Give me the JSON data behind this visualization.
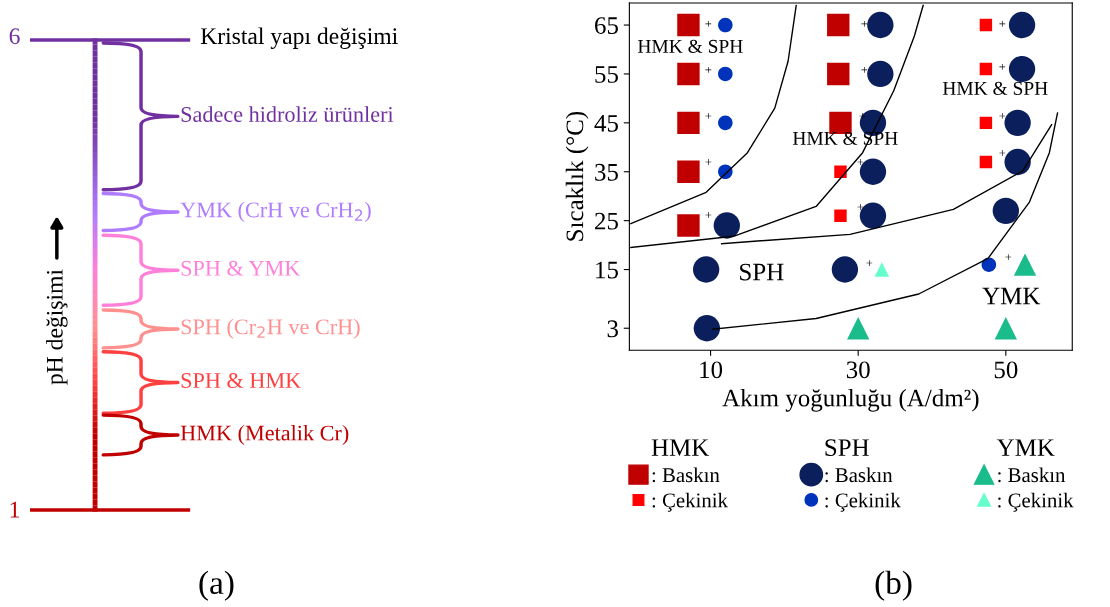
{
  "chart_data": [
    {
      "type": "other",
      "title": "(a)",
      "ylabel": "pH değişimi",
      "categories": [
        "Sadece hidroliz ürünleri",
        "YMK (CrH ve CrH$_{2}$)",
        "SPH & YMK",
        "SPH (Cr$_{2}$H ve CrH)",
        "SPH & HMK",
        "HMK (Metalik Cr)"
      ],
      "colors": [
        "#7030a0",
        "#b07cff",
        "#ff80d8",
        "#ff9090",
        "#ff4040",
        "#c00000"
      ],
      "annotations": [
        "6",
        "1",
        "Kristal yapı değişimi"
      ]
    },
    {
      "type": "scatter",
      "title": "(b)",
      "xlabel": "Akım yoğunluğu (A/dm²)",
      "ylabel": "Sıcaklık (°C)",
      "xlim": [
        -1,
        59
      ],
      "xticks": [
        10,
        30,
        50
      ],
      "ylim": [
        -1.5,
        69.5
      ],
      "yticks": [
        3,
        15,
        25,
        35,
        45,
        55,
        65
      ],
      "grid": false,
      "legend": "bottom",
      "series": [
        {
          "name": ": Baskın",
          "color": "#c00000",
          "marker": "square",
          "x": [
            7,
            7,
            7,
            7,
            7,
            27.3,
            27.3,
            27.6
          ],
          "values": [
            65,
            55,
            45,
            35,
            24,
            65,
            55,
            45
          ]
        },
        {
          "name": ": Çekinik",
          "color": "#ff0000",
          "marker": "square",
          "x": [
            27.6,
            27.6,
            47.3,
            47.3,
            47.3,
            47.3
          ],
          "values": [
            35,
            26,
            65,
            56,
            45,
            37
          ]
        },
        {
          "name": ": Baskın",
          "color": "#0a1f5c",
          "marker": "circle",
          "x": [
            12.2,
            33,
            33,
            32,
            32,
            32,
            52.2,
            52.2,
            51.6,
            51.6,
            50,
            9.4,
            9.5,
            28.2
          ],
          "values": [
            24,
            65,
            55,
            45,
            35,
            26,
            65,
            56,
            45,
            37,
            27,
            15,
            3,
            15
          ]
        },
        {
          "name": ": Çekinik",
          "color": "#0033bb",
          "marker": "circle",
          "x": [
            12,
            12,
            12,
            12,
            47.7
          ],
          "values": [
            65,
            55,
            45,
            35,
            16
          ]
        },
        {
          "name": ": Baskın",
          "color": "#1abc8c",
          "marker": "triangle",
          "x": [
            30,
            50,
            52.6
          ],
          "values": [
            3,
            3,
            16
          ]
        },
        {
          "name": ": Çekinik",
          "color": "#66ffcc",
          "marker": "triangle",
          "x": [
            33.2
          ],
          "values": [
            15
          ]
        },
        {
          "type": "line",
          "color": "#000000",
          "x": [
            -0.8,
            9.4,
            15,
            18.7,
            20.5,
            21.6
          ],
          "values": [
            24.4,
            30.8,
            38.9,
            48,
            57.6,
            69
          ]
        },
        {
          "type": "line",
          "color": "#000000",
          "x": [
            -0.8,
            13.1,
            24.3,
            30.6,
            34.8,
            37.6,
            38.8
          ],
          "values": [
            19.5,
            21.8,
            27.9,
            38.9,
            51.5,
            62.7,
            69
          ]
        },
        {
          "type": "line",
          "color": "#000000",
          "x": [
            11.5,
            28.9,
            42.9,
            52.3,
            56.2
          ],
          "values": [
            20.3,
            22.2,
            27.3,
            35.2,
            44.6
          ]
        },
        {
          "type": "line",
          "color": "#000000",
          "x": [
            10.3,
            24.3,
            38.2,
            47.6,
            53.2,
            55.9,
            57
          ],
          "values": [
            2.8,
            5,
            10,
            17.3,
            28.8,
            38.9,
            47
          ]
        }
      ],
      "annotations": [
        "HMK",
        "SPH",
        "YMK",
        "+",
        "+",
        "+",
        "+",
        "+",
        "+",
        "+",
        "+",
        "+",
        "+",
        "+",
        "+",
        "+",
        "+",
        "+",
        "+",
        "HMK & SPH",
        "HMK & SPH",
        "HMK & SPH",
        "SPH",
        "YMK"
      ]
    }
  ]
}
